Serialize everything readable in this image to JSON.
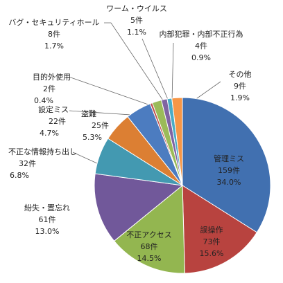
{
  "chart_data": {
    "type": "pie",
    "categories": [
      "管理ミス",
      "誤操作",
      "不正アクセス",
      "紛失・置忘れ",
      "不正な情報持ち出し",
      "盗難",
      "設定ミス",
      "目的外使用",
      "バグ・セキュリティホール",
      "ワーム・ウイルス",
      "内部犯罪・内部不正行為",
      "その他"
    ],
    "values": [
      159,
      73,
      68,
      61,
      32,
      25,
      22,
      2,
      8,
      5,
      4,
      9
    ],
    "value_labels": [
      "159件",
      "73件",
      "68件",
      "61件",
      "32件",
      "25件",
      "22件",
      "2件",
      "8件",
      "5件",
      "4件",
      "9件"
    ],
    "percentages": [
      34.0,
      15.6,
      14.5,
      13.0,
      6.8,
      5.3,
      4.7,
      0.4,
      1.7,
      1.1,
      0.9,
      1.9
    ],
    "percentage_labels": [
      "34.0%",
      "15.6%",
      "14.5%",
      "13.0%",
      "6.8%",
      "5.3%",
      "4.7%",
      "0.4%",
      "1.7%",
      "1.1%",
      "0.9%",
      "1.9%"
    ],
    "colors": [
      "#4170b0",
      "#b8433f",
      "#93b650",
      "#71589a",
      "#4399b1",
      "#dc7f33",
      "#4c7cc0",
      "#c0504d",
      "#9bbb59",
      "#8064a2",
      "#4bacc6",
      "#f79646"
    ]
  }
}
